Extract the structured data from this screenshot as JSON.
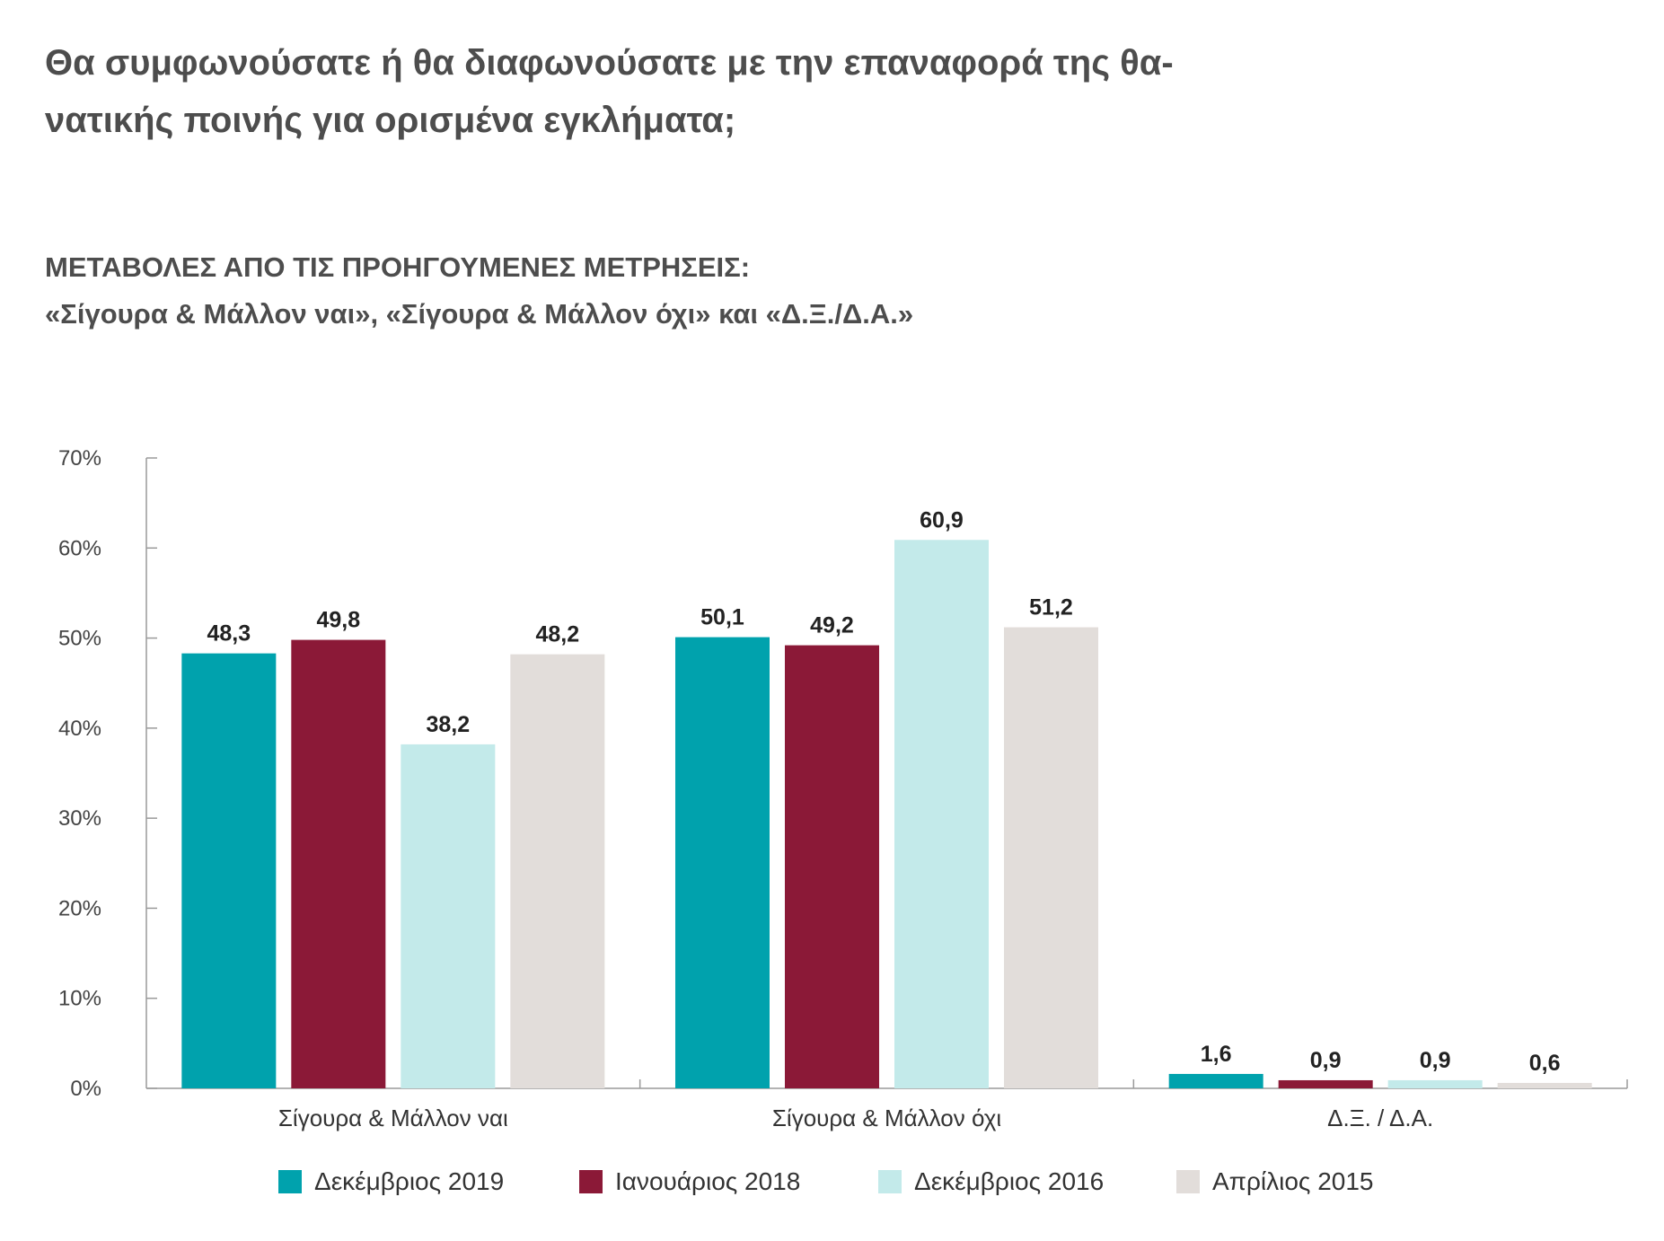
{
  "title_line1": "Θα συμφωνούσατε ή θα διαφωνούσατε με την επαναφορά της θα-",
  "title_line2": "νατικής ποινής για ορισμένα εγκλήματα;",
  "subtitle_line1": "ΜΕΤΑΒΟΛΕΣ ΑΠΟ ΤΙΣ ΠΡΟΗΓΟΥΜΕΝΕΣ ΜΕΤΡΗΣΕΙΣ:",
  "subtitle_line2": "«Σίγουρα & Μάλλον ναι», «Σίγουρα & Μάλλον όχι» και «Δ.Ξ./Δ.Α.»",
  "chart_data": {
    "type": "bar",
    "categories": [
      "Σίγουρα & Μάλλον ναι",
      "Σίγουρα & Μάλλον όχι",
      "Δ.Ξ. / Δ.Α."
    ],
    "series": [
      {
        "name": "Δεκέμβριος 2019",
        "color": "#00a2ad",
        "values": [
          48.3,
          50.1,
          1.6
        ],
        "labels": [
          "48,3",
          "50,1",
          "1,6"
        ]
      },
      {
        "name": "Ιανουάριος 2018",
        "color": "#8b1937",
        "values": [
          49.8,
          49.2,
          0.9
        ],
        "labels": [
          "49,8",
          "49,2",
          "0,9"
        ]
      },
      {
        "name": "Δεκέμβριος 2016",
        "color": "#c3eaea",
        "values": [
          38.2,
          60.9,
          0.9
        ],
        "labels": [
          "38,2",
          "60,9",
          "0,9"
        ]
      },
      {
        "name": "Απρίλιος 2015",
        "color": "#e2ddda",
        "values": [
          48.2,
          51.2,
          0.6
        ],
        "labels": [
          "48,2",
          "51,2",
          "0,6"
        ]
      }
    ],
    "ylim": [
      0,
      70
    ],
    "yticks": [
      0,
      10,
      20,
      30,
      40,
      50,
      60,
      70
    ],
    "ytick_labels": [
      "0%",
      "10%",
      "20%",
      "30%",
      "40%",
      "50%",
      "60%",
      "70%"
    ],
    "grid": false,
    "legend_position": "bottom"
  }
}
